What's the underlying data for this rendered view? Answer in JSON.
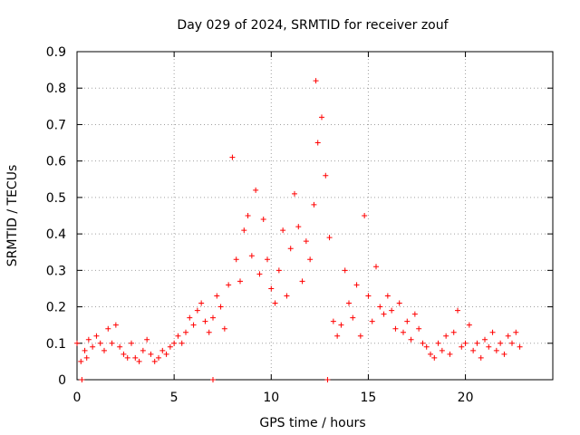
{
  "chart_data": {
    "type": "scatter",
    "title": "Day 029 of 2024, SRMTID for receiver zouf",
    "xlabel": "GPS time / hours",
    "ylabel": "SRMTID / TECUs",
    "xlim": [
      0,
      24.5
    ],
    "ylim": [
      0,
      0.9
    ],
    "xticks": [
      0,
      5,
      10,
      15,
      20
    ],
    "yticks": [
      0,
      0.1,
      0.2,
      0.3,
      0.4,
      0.5,
      0.6,
      0.7,
      0.8,
      0.9
    ],
    "grid": true,
    "marker": "+",
    "marker_color": "#ff0000",
    "series": [
      {
        "name": "SRMTID",
        "x": [
          0.0,
          0.2,
          0.4,
          0.5,
          0.6,
          0.8,
          1.0,
          1.2,
          1.4,
          1.6,
          1.8,
          2.0,
          2.2,
          2.4,
          2.6,
          2.8,
          3.0,
          3.2,
          3.4,
          3.6,
          3.8,
          4.0,
          4.2,
          4.4,
          4.6,
          4.8,
          5.0,
          5.2,
          5.4,
          5.6,
          5.8,
          6.0,
          6.2,
          6.4,
          6.6,
          6.8,
          7.0,
          7.2,
          7.4,
          7.6,
          7.8,
          8.0,
          8.2,
          8.4,
          8.6,
          8.8,
          9.0,
          9.2,
          9.4,
          9.6,
          9.8,
          10.0,
          10.2,
          10.4,
          10.6,
          10.8,
          11.0,
          11.2,
          11.4,
          11.6,
          11.8,
          12.0,
          12.2,
          12.3,
          12.4,
          12.6,
          12.8,
          13.0,
          13.2,
          13.4,
          13.6,
          13.8,
          14.0,
          14.2,
          14.4,
          14.6,
          14.8,
          15.0,
          15.2,
          15.4,
          15.6,
          15.8,
          16.0,
          16.2,
          16.4,
          16.6,
          16.8,
          17.0,
          17.2,
          17.4,
          17.6,
          17.8,
          18.0,
          18.2,
          18.4,
          18.6,
          18.8,
          19.0,
          19.2,
          19.4,
          19.6,
          19.8,
          20.0,
          20.2,
          20.4,
          20.6,
          20.8,
          21.0,
          21.2,
          21.4,
          21.6,
          21.8,
          22.0,
          22.2,
          22.4,
          22.6,
          22.8,
          0.25,
          7.0,
          12.9
        ],
        "y": [
          0.1,
          0.05,
          0.08,
          0.06,
          0.11,
          0.09,
          0.12,
          0.1,
          0.08,
          0.14,
          0.1,
          0.15,
          0.09,
          0.07,
          0.06,
          0.1,
          0.06,
          0.05,
          0.08,
          0.11,
          0.07,
          0.05,
          0.06,
          0.08,
          0.07,
          0.09,
          0.1,
          0.12,
          0.1,
          0.13,
          0.17,
          0.15,
          0.19,
          0.21,
          0.16,
          0.13,
          0.17,
          0.23,
          0.2,
          0.14,
          0.26,
          0.61,
          0.33,
          0.27,
          0.41,
          0.45,
          0.34,
          0.52,
          0.29,
          0.44,
          0.33,
          0.25,
          0.21,
          0.3,
          0.41,
          0.23,
          0.36,
          0.51,
          0.42,
          0.27,
          0.38,
          0.33,
          0.48,
          0.82,
          0.65,
          0.72,
          0.56,
          0.39,
          0.16,
          0.12,
          0.15,
          0.3,
          0.21,
          0.17,
          0.26,
          0.12,
          0.45,
          0.23,
          0.16,
          0.31,
          0.2,
          0.18,
          0.23,
          0.19,
          0.14,
          0.21,
          0.13,
          0.16,
          0.11,
          0.18,
          0.14,
          0.1,
          0.09,
          0.07,
          0.06,
          0.1,
          0.08,
          0.12,
          0.07,
          0.13,
          0.19,
          0.09,
          0.1,
          0.15,
          0.08,
          0.1,
          0.06,
          0.11,
          0.09,
          0.13,
          0.08,
          0.1,
          0.07,
          0.12,
          0.1,
          0.13,
          0.09,
          0.0,
          0.0,
          0.0
        ]
      }
    ]
  }
}
